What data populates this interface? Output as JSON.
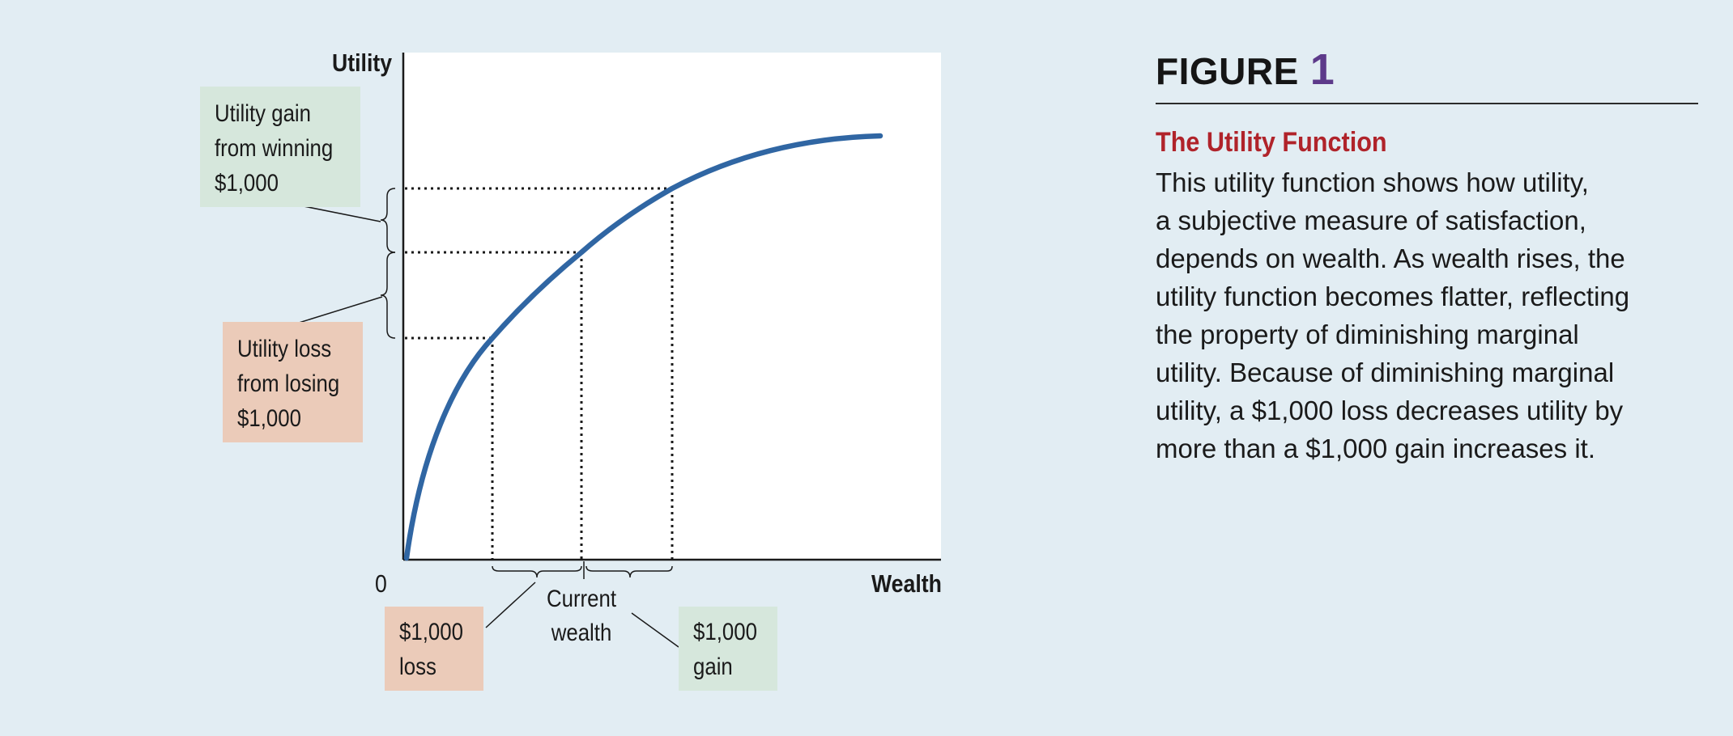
{
  "figure": {
    "heading": "FIGURE",
    "number": "1",
    "title": "The Utility Function",
    "description_lines": [
      "This utility function shows how utility,",
      "a subjective measure of satisfaction,",
      "depends on wealth. As wealth rises, the",
      "utility function becomes flatter, reflecting",
      "the property of diminishing marginal",
      "utility. Because of diminishing marginal",
      "utility, a $1,000 loss decreases utility by",
      "more than a $1,000 gain increases it."
    ]
  },
  "chart_data": {
    "type": "line",
    "xlabel": "Wealth",
    "ylabel": "Utility",
    "origin_label": "0",
    "curve": "concave utility function, increasing and flattening",
    "current_wealth_label": [
      "Current",
      "wealth"
    ],
    "loss_label": [
      "$1,000",
      "loss"
    ],
    "gain_label": [
      "$1,000",
      "gain"
    ],
    "utility_gain_label": [
      "Utility gain",
      "from winning",
      "$1,000"
    ],
    "utility_loss_label": [
      "Utility loss",
      "from losing",
      "$1,000"
    ]
  },
  "colors": {
    "background": "#e2edf3",
    "curve": "#3066a3",
    "gain_box": "#d6e7dc",
    "loss_box": "#ebcbb9",
    "title": "#b0232a",
    "figure_number": "#5d3a8a"
  }
}
